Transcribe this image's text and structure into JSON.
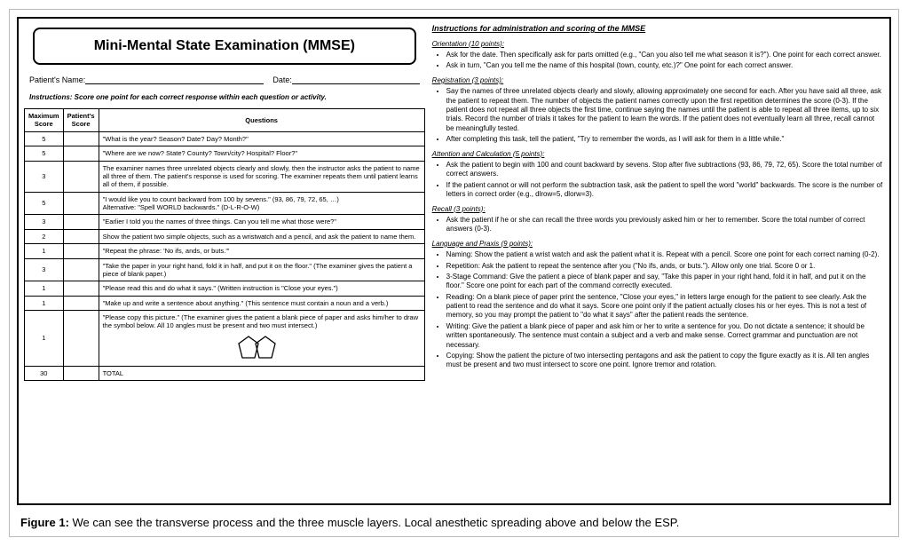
{
  "title": "Mini-Mental State Examination (MMSE)",
  "patient_label": "Patient's Name:",
  "date_label": "Date:",
  "instructions": "Instructions: Score one point for each correct response within each question or activity.",
  "headers": {
    "max": "Maximum Score",
    "pat": "Patient's Score",
    "q": "Questions"
  },
  "rows": [
    {
      "max": "5",
      "q": "\"What is the year?  Season?  Date?  Day?  Month?\""
    },
    {
      "max": "5",
      "q": "\"Where are we now?  State?  County?  Town/city?  Hospital?  Floor?\""
    },
    {
      "max": "3",
      "q": "The examiner names three unrelated objects clearly and slowly, then the instructor asks the patient to name all three of them. The patient's response is used for scoring. The examiner repeats them until patient learns all of them, if possible."
    },
    {
      "max": "5",
      "q": "\"I would like you to count backward from 100 by sevens.\" (93, 86, 79, 72, 65, …)\nAlternative: \"Spell WORLD backwards.\" (D-L-R-O-W)"
    },
    {
      "max": "3",
      "q": "\"Earlier I told you the names of three things.  Can you tell me what those were?\""
    },
    {
      "max": "2",
      "q": "Show the patient two simple objects, such as a wristwatch and a pencil, and ask the patient to name them."
    },
    {
      "max": "1",
      "q": "\"Repeat the phrase: 'No ifs, ands, or buts.'\""
    },
    {
      "max": "3",
      "q": "\"Take the paper in your right hand, fold it in half, and put it on the floor.\" (The examiner gives the patient a piece of blank paper.)"
    },
    {
      "max": "1",
      "q": "\"Please read this and do what it says.\" (Written instruction is \"Close your eyes.\")"
    },
    {
      "max": "1",
      "q": "\"Make up and write a sentence about anything.\" (This sentence must contain a noun and a verb.)"
    },
    {
      "max": "1",
      "q": "\"Please copy this picture.\" (The examiner gives the patient a blank piece of paper and asks him/her to draw the symbol below.  All 10 angles must be present and two must intersect.)",
      "pentagon": true
    },
    {
      "max": "30",
      "q": "TOTAL"
    }
  ],
  "right": {
    "main_title": "Instructions for administration and scoring of the MMSE",
    "sections": [
      {
        "title": "Orientation (10 points):",
        "items": [
          "Ask for the date. Then specifically ask for parts omitted (e.g., \"Can you also tell me what season it is?\"). One point for each correct answer.",
          "Ask in turn, \"Can you tell me the name of this hospital (town, county, etc.)?\" One point for each correct answer."
        ]
      },
      {
        "title": "Registration (3 points):",
        "items": [
          "Say the names of three unrelated objects clearly and slowly, allowing approximately one second for each. After you have said all three, ask the patient to repeat them. The number of objects the patient names correctly upon the first repetition determines the score (0-3). If the patient does not repeat all three objects the first time, continue saying the names until the patient is able to repeat all three items, up to six trials. Record the number of trials it takes for the patient to learn the words. If the patient does not eventually learn all three, recall cannot be meaningfully tested.",
          "After completing this task, tell the patient, \"Try to remember the words, as I will ask for them in a little while.\""
        ]
      },
      {
        "title": "Attention and Calculation (5 points):",
        "items": [
          "Ask the patient to begin with 100 and count backward by sevens. Stop after five subtractions (93, 86, 79, 72, 65). Score the total number of correct answers.",
          "If the patient cannot or will not perform the subtraction task, ask the patient to spell the word \"world\" backwards. The score is the number of letters in correct order (e.g., dlrow=5, dlorw=3)."
        ]
      },
      {
        "title": "Recall (3 points):",
        "items": [
          "Ask the patient if he or she can recall the three words you previously asked him or her to remember. Score the total number of correct answers (0-3)."
        ]
      },
      {
        "title": "Language and Praxis (9 points):",
        "items": [
          "Naming: Show the patient a wrist watch and ask the patient what it is. Repeat with a pencil. Score one point for each correct naming (0-2).",
          "Repetition: Ask the patient to repeat the sentence after you (\"No ifs, ands, or buts.\"). Allow only one trial. Score 0 or 1.",
          "3-Stage Command: Give the patient a piece of blank paper and say, \"Take this paper in your right hand, fold it in half, and put it on the floor.\" Score one point for each part of the command correctly executed.",
          "Reading: On a blank piece of paper print the sentence, \"Close your eyes,\" in letters large enough for the patient to see clearly. Ask the patient to read the sentence and do what it says. Score one point only if the patient actually closes his or her eyes. This is not a test of memory, so you may prompt the patient to \"do what it says\" after the patient reads the sentence.",
          "Writing: Give the patient a blank piece of paper and ask him or her to write a sentence for you. Do not dictate a sentence; it should be written spontaneously. The sentence must contain a subject and a verb and make sense. Correct grammar and punctuation are not necessary.",
          "Copying: Show the patient the picture of two intersecting pentagons and ask the patient to copy the figure exactly as it is. All ten angles must be present and two must intersect to score one point. Ignore tremor and rotation."
        ]
      }
    ]
  },
  "caption_label": "Figure 1:",
  "caption_text": " We can see the transverse process and the three muscle layers. Local anesthetic spreading above and below the ESP."
}
